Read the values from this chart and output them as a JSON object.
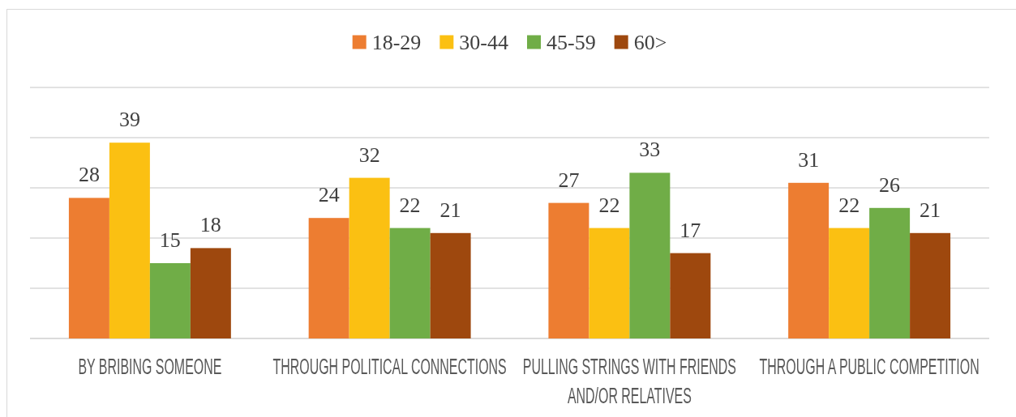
{
  "chart_data": {
    "type": "bar",
    "categories": [
      "BY BRIBING SOMEONE",
      "THROUGH POLITICAL CONNECTIONS",
      "PULLING STRINGS WITH FRIENDS AND/OR RELATIVES",
      "THROUGH A PUBLIC COMPETITION"
    ],
    "series": [
      {
        "name": "18-29",
        "color": "#ed7d31",
        "values": [
          28,
          24,
          27,
          31
        ]
      },
      {
        "name": "30-44",
        "color": "#fbc012",
        "values": [
          39,
          32,
          22,
          22
        ]
      },
      {
        "name": "45-59",
        "color": "#70ad47",
        "values": [
          15,
          22,
          33,
          26
        ]
      },
      {
        "name": "60>",
        "color": "#9e480e",
        "values": [
          18,
          21,
          17,
          21
        ]
      }
    ],
    "ylim": [
      0,
      50
    ],
    "yticks": [
      {
        "value": 0,
        "label": null
      },
      {
        "value": 10,
        "label": null
      },
      {
        "value": 20,
        "label": null
      },
      {
        "value": 30,
        "label": null
      },
      {
        "value": 40,
        "label": null
      },
      {
        "value": 50,
        "label": null
      }
    ],
    "grid": "y",
    "legend": "top",
    "data_labels": true,
    "tick_labels": "x"
  }
}
